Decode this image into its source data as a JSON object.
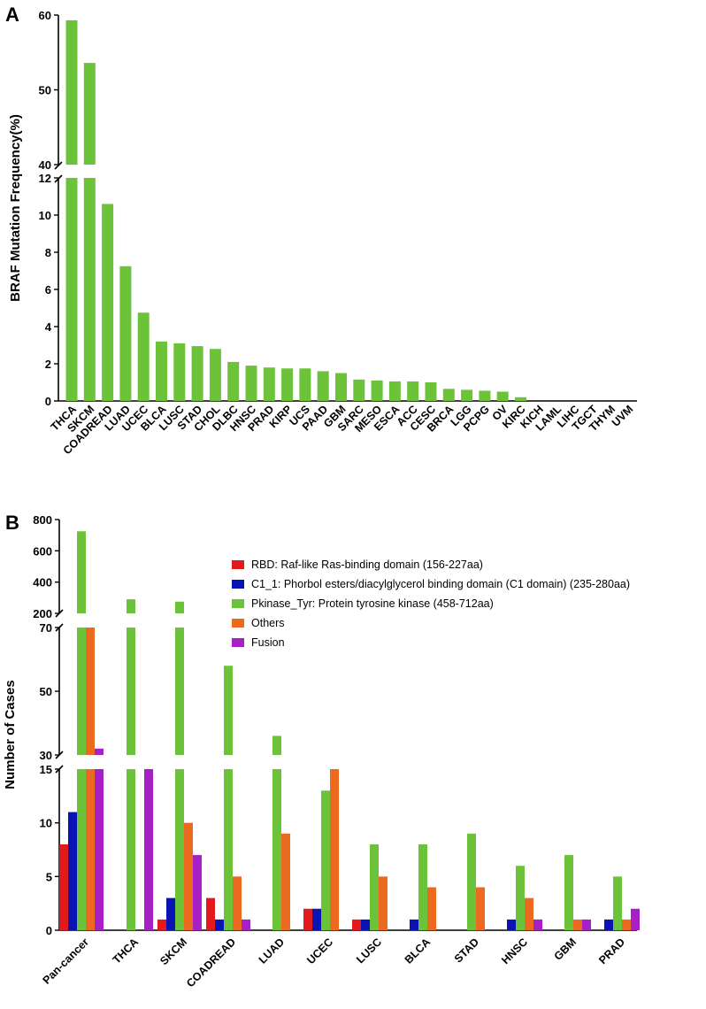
{
  "chart_data": [
    {
      "panel_label": "A",
      "type": "bar",
      "ylabel": "BRAF Mutation Frequency(%)",
      "xlabel": "",
      "y_axis_break": {
        "lower": [
          0,
          12
        ],
        "upper": [
          40,
          60
        ]
      },
      "y_ticks_lower": [
        "0",
        "2",
        "4",
        "6",
        "8",
        "10",
        "12"
      ],
      "y_ticks_upper": [
        "40",
        "50",
        "60"
      ],
      "color": "#6cc33a",
      "categories": [
        "THCA",
        "SKCM",
        "COADREAD",
        "LUAD",
        "UCEC",
        "BLCA",
        "LUSC",
        "STAD",
        "CHOL",
        "DLBC",
        "HNSC",
        "PRAD",
        "KIRP",
        "UCS",
        "PAAD",
        "GBM",
        "SARC",
        "MESO",
        "ESCA",
        "ACC",
        "CESC",
        "BRCA",
        "LGG",
        "PCPG",
        "OV",
        "KIRC",
        "KICH",
        "LAML",
        "LIHC",
        "TGCT",
        "THYM",
        "UVM"
      ],
      "values": [
        59.3,
        53.6,
        10.6,
        7.25,
        4.75,
        3.2,
        3.1,
        2.95,
        2.8,
        2.1,
        1.9,
        1.8,
        1.75,
        1.75,
        1.6,
        1.5,
        1.15,
        1.1,
        1.05,
        1.05,
        1.0,
        0.65,
        0.6,
        0.55,
        0.5,
        0.2,
        0,
        0,
        0,
        0,
        0,
        0
      ]
    },
    {
      "panel_label": "B",
      "type": "bar",
      "ylabel": "Number of Cases",
      "xlabel": "",
      "y_axis_breaks": [
        [
          0,
          15
        ],
        [
          30,
          70
        ],
        [
          200,
          800
        ]
      ],
      "y_ticks_low": [
        "0",
        "5",
        "10",
        "15"
      ],
      "y_ticks_mid": [
        "30",
        "50",
        "70"
      ],
      "y_ticks_high": [
        "200",
        "400",
        "600",
        "800"
      ],
      "categories": [
        "Pan-cancer",
        "THCA",
        "SKCM",
        "COADREAD",
        "LUAD",
        "UCEC",
        "LUSC",
        "BLCA",
        "STAD",
        "HNSC",
        "GBM",
        "PRAD"
      ],
      "series": [
        {
          "name": "RBD: Raf-like Ras-binding domain (156-227aa)",
          "color": "#e31a1c",
          "values": [
            8,
            0,
            1,
            3,
            0,
            2,
            1,
            0,
            0,
            0,
            0,
            0
          ]
        },
        {
          "name": "C1_1: Phorbol esters/diacylglycerol binding domain (C1 domain) (235-280aa)",
          "color": "#0a14b4",
          "values": [
            11,
            0,
            3,
            1,
            0,
            2,
            1,
            1,
            0,
            1,
            0,
            1
          ]
        },
        {
          "name": "Pkinase_Tyr: Protein tyrosine kinase (458-712aa)",
          "color": "#6cc33a",
          "values": [
            725,
            290,
            275,
            58,
            36,
            13,
            8,
            8,
            9,
            6,
            7,
            5
          ]
        },
        {
          "name": "Others",
          "color": "#ec6a20",
          "values": [
            70,
            0,
            10,
            5,
            9,
            15,
            5,
            4,
            4,
            3,
            1,
            1
          ]
        },
        {
          "name": "Fusion",
          "color": "#a620c6",
          "values": [
            32,
            15,
            7,
            1,
            0,
            0,
            0,
            0,
            0,
            1,
            1,
            2
          ]
        }
      ],
      "legend_position": "top-right"
    }
  ]
}
